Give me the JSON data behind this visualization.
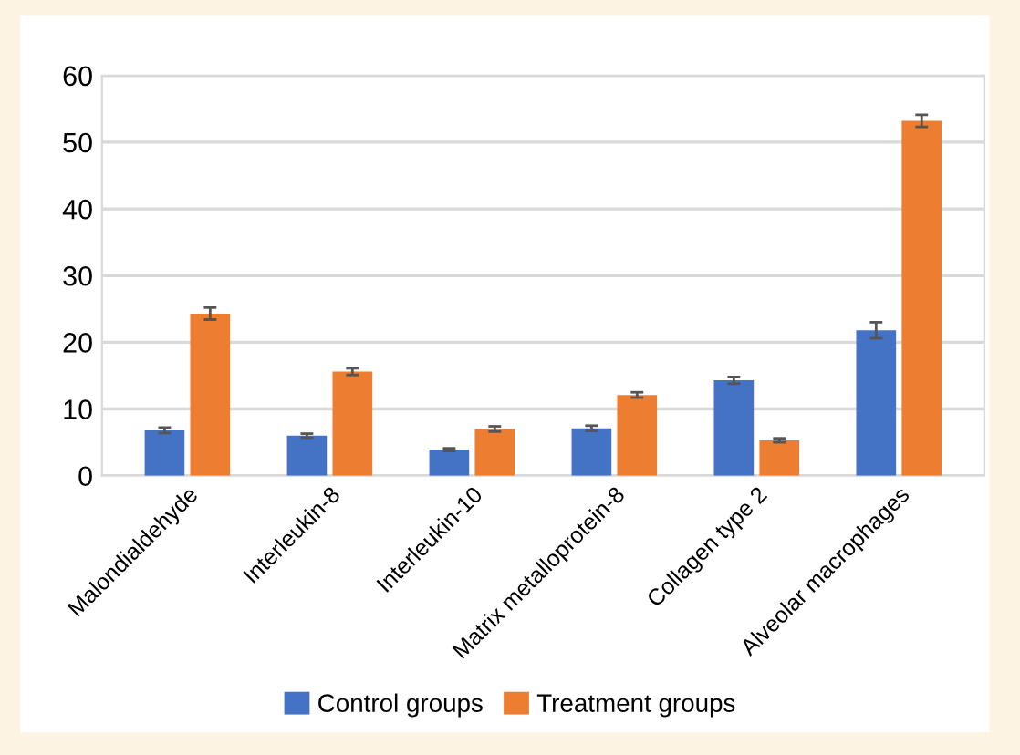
{
  "chart_data": {
    "type": "bar",
    "categories": [
      "Malondialdehyde",
      "Interleukin-8",
      "Interleukin-10",
      "Matrix metalloprotein-8",
      "Collagen type 2",
      "Alveolar macrophages"
    ],
    "series": [
      {
        "name": "Control groups",
        "color": "#4472c4",
        "values": [
          6.8,
          6.0,
          3.9,
          7.1,
          14.3,
          21.8
        ],
        "errors": [
          0.4,
          0.3,
          0.2,
          0.4,
          0.5,
          1.2
        ]
      },
      {
        "name": "Treatment groups",
        "color": "#ed7d31",
        "values": [
          24.3,
          15.6,
          7.0,
          12.1,
          5.3,
          53.2
        ],
        "errors": [
          0.9,
          0.5,
          0.4,
          0.4,
          0.3,
          0.9
        ]
      }
    ],
    "ylim": [
      0,
      60
    ],
    "yticks": [
      0,
      10,
      20,
      30,
      40,
      50,
      60
    ],
    "grid": "y",
    "legend": "bottom"
  }
}
